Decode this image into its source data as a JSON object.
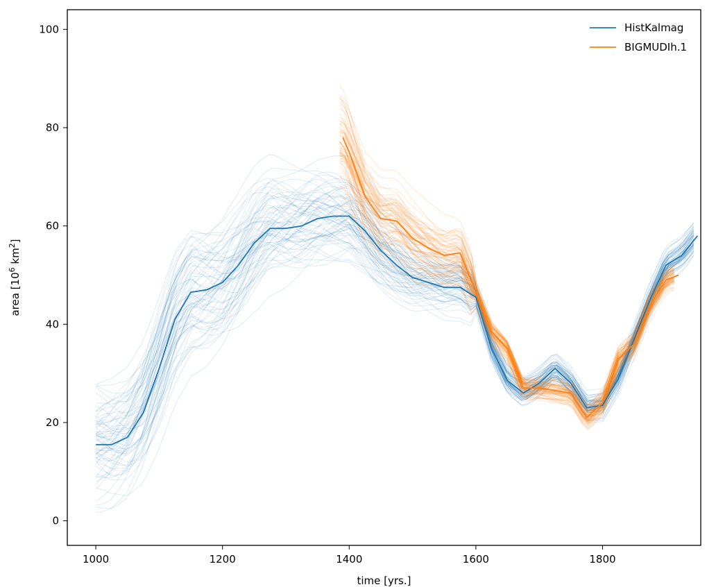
{
  "chart_data": {
    "type": "line",
    "title": "",
    "xlabel": "time [yrs.]",
    "ylabel_parts": {
      "prefix": "area [10",
      "exp1": "6",
      "mid": " km",
      "exp2": "2",
      "suffix": "]"
    },
    "xlim": [
      955,
      1955
    ],
    "ylim": [
      -5,
      104
    ],
    "xticks": [
      1000,
      1200,
      1400,
      1600,
      1800
    ],
    "yticks": [
      0,
      20,
      40,
      60,
      80,
      100
    ],
    "grid": false,
    "legend_position": "top-right",
    "colors": {
      "HistKalmag": "#1f77b4",
      "BIGMUDIh.1": "#ff7f0e"
    },
    "series": [
      {
        "name": "HistKalmag",
        "color": "#1f77b4",
        "role": "mean",
        "x": [
          1000,
          1025,
          1050,
          1075,
          1100,
          1125,
          1150,
          1175,
          1200,
          1225,
          1250,
          1275,
          1300,
          1325,
          1350,
          1375,
          1400,
          1425,
          1450,
          1475,
          1500,
          1525,
          1550,
          1575,
          1600,
          1625,
          1650,
          1675,
          1700,
          1725,
          1750,
          1775,
          1800,
          1825,
          1850,
          1875,
          1900,
          1925,
          1950
        ],
        "values": [
          15.5,
          15.5,
          17,
          22,
          31,
          41,
          46.5,
          47,
          48.5,
          52,
          56.5,
          59.5,
          59.5,
          60,
          61.5,
          62,
          62,
          59,
          55,
          52,
          49.5,
          48.5,
          47.5,
          47.5,
          45.5,
          35,
          28.5,
          26,
          28,
          31,
          28,
          23,
          23.5,
          29,
          37,
          45,
          52,
          54,
          58
        ]
      },
      {
        "name": "BIGMUDIh.1",
        "color": "#ff7f0e",
        "role": "mean",
        "x": [
          1390,
          1400,
          1425,
          1450,
          1475,
          1500,
          1525,
          1550,
          1575,
          1600,
          1625,
          1650,
          1675,
          1700,
          1725,
          1750,
          1775,
          1800,
          1825,
          1850,
          1875,
          1900,
          1920
        ],
        "values": [
          78,
          75,
          66,
          61.5,
          61,
          57.5,
          55.5,
          54,
          54.5,
          46.5,
          38.5,
          35,
          27,
          27,
          26.5,
          26,
          21,
          24,
          33,
          36,
          44,
          49,
          50
        ]
      }
    ],
    "ensemble": [
      {
        "series": "HistKalmag",
        "count": 70,
        "x_range": [
          1000,
          1950
        ],
        "opacity": 0.13
      },
      {
        "series": "BIGMUDIh.1",
        "count": 70,
        "x_range": [
          1385,
          1920
        ],
        "opacity": 0.16
      }
    ]
  }
}
